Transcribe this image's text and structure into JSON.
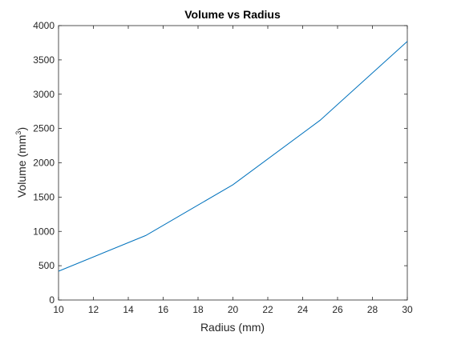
{
  "chart_data": {
    "type": "line",
    "title": "Volume vs Radius",
    "xlabel": "Radius (mm)",
    "ylabel_main": "Volume (mm",
    "ylabel_sup": "3",
    "ylabel_tail": ")",
    "xlim": [
      10,
      30
    ],
    "ylim": [
      0,
      4000
    ],
    "xticks": [
      10,
      12,
      14,
      16,
      18,
      20,
      22,
      24,
      26,
      28,
      30
    ],
    "yticks": [
      0,
      500,
      1000,
      1500,
      2000,
      2500,
      3000,
      3500,
      4000
    ],
    "grid": false,
    "series": [
      {
        "x": [
          10,
          15,
          20,
          25,
          30
        ],
        "y": [
          420,
          940,
          1680,
          2620,
          3770
        ],
        "color": "#0072BD"
      }
    ]
  }
}
